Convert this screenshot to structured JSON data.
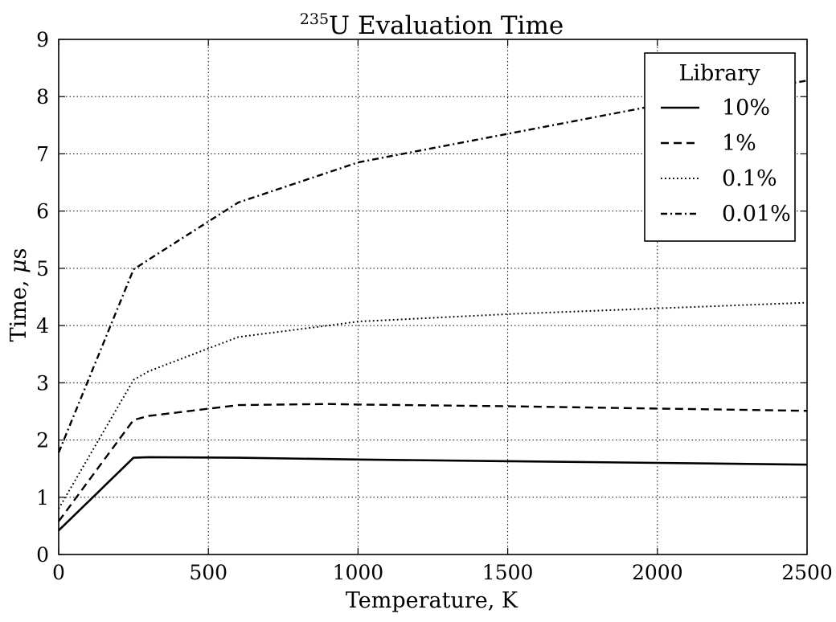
{
  "chart_data": {
    "type": "line",
    "title_sup": "235",
    "title_main": "U Evaluation Time",
    "xlabel": "Temperature, K",
    "ylabel_prefix": "Time, ",
    "ylabel_unit_italic": "μ",
    "ylabel_suffix": "s",
    "xlim": [
      0,
      2500
    ],
    "ylim": [
      0,
      9
    ],
    "xticks": [
      "0",
      "500",
      "1000",
      "1500",
      "2000",
      "2500"
    ],
    "yticks": [
      "0",
      "1",
      "2",
      "3",
      "4",
      "5",
      "6",
      "7",
      "8",
      "9"
    ],
    "grid": true,
    "legend": {
      "title": "Library",
      "placement": "top-right"
    },
    "series": [
      {
        "name": "10%",
        "style": "solid",
        "x": [
          0,
          250,
          300,
          600,
          1000,
          1500,
          2000,
          2500
        ],
        "y": [
          0.42,
          1.69,
          1.7,
          1.69,
          1.66,
          1.63,
          1.6,
          1.57
        ]
      },
      {
        "name": "1%",
        "style": "dashed",
        "x": [
          0,
          250,
          300,
          600,
          900,
          1000,
          1500,
          2000,
          2500
        ],
        "y": [
          0.58,
          2.35,
          2.42,
          2.61,
          2.63,
          2.62,
          2.59,
          2.55,
          2.51
        ]
      },
      {
        "name": "0.1%",
        "style": "dotted",
        "x": [
          0,
          250,
          300,
          600,
          900,
          1000,
          1500,
          2000,
          2500
        ],
        "y": [
          0.8,
          3.05,
          3.2,
          3.8,
          4.0,
          4.07,
          4.2,
          4.3,
          4.4
        ]
      },
      {
        "name": "0.01%",
        "style": "dashdot",
        "x": [
          0,
          250,
          300,
          600,
          1000,
          1500,
          2000,
          2500
        ],
        "y": [
          1.78,
          4.98,
          5.15,
          6.15,
          6.85,
          7.35,
          7.85,
          8.28
        ]
      }
    ]
  }
}
